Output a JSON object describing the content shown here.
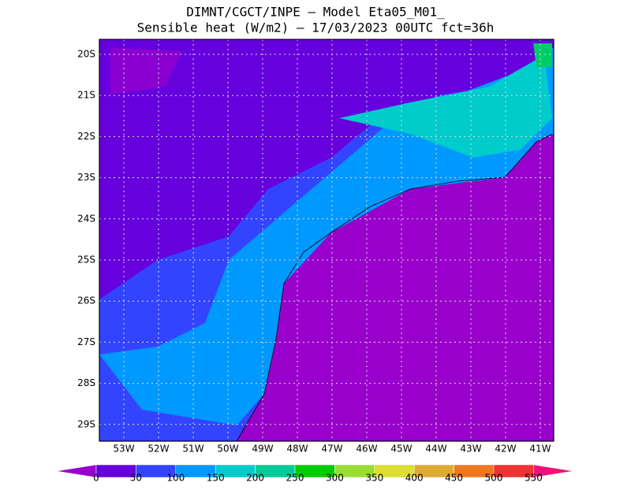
{
  "header": {
    "line1": "DIMNT/CGCT/INPE –  Model Eta05_M01_",
    "line2": "Sensible heat (W/m2) –  17/03/2023 00UTC fct=36h"
  },
  "map": {
    "lat_labels": [
      "20S",
      "21S",
      "22S",
      "23S",
      "24S",
      "25S",
      "26S",
      "27S",
      "28S",
      "29S"
    ],
    "lon_labels": [
      "53W",
      "52W",
      "51W",
      "50W",
      "49W",
      "48W",
      "47W",
      "46W",
      "45W",
      "44W",
      "43W",
      "42W",
      "41W"
    ]
  },
  "colorbar": {
    "labels": [
      0,
      50,
      100,
      150,
      200,
      250,
      300,
      350,
      400,
      450,
      500,
      550
    ],
    "colors": [
      "#9900cc",
      "#6600dd",
      "#3344ff",
      "#0099ff",
      "#00cccc",
      "#00cc99",
      "#00cc00",
      "#99dd33",
      "#dddd33",
      "#ddaa33",
      "#ee7722",
      "#ee3333",
      "#ee1177"
    ]
  }
}
